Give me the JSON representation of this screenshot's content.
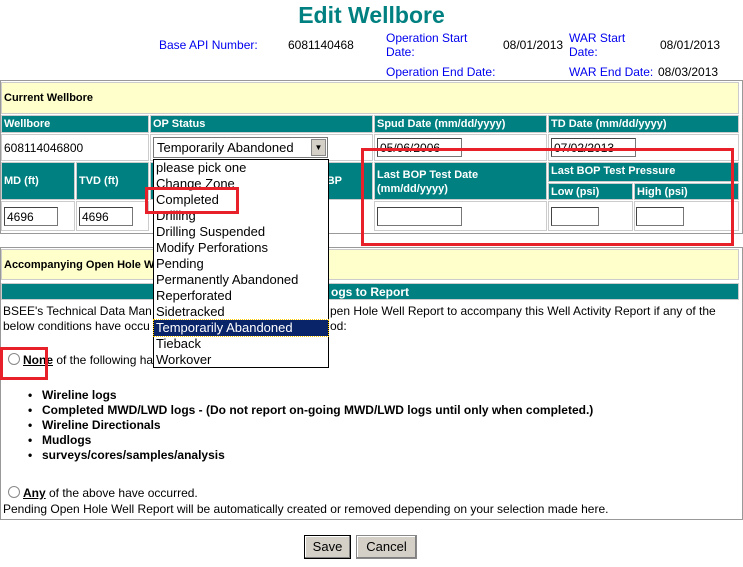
{
  "title": "Edit Wellbore",
  "info": {
    "base_api_label": "Base API Number:",
    "base_api": "6081140468",
    "op_start_label_1": "Operation Start",
    "op_start_label_2": "Date:",
    "op_start": "08/01/2013",
    "war_start_label_1": "WAR Start",
    "war_start_label_2": "Date:",
    "war_start": "08/01/2013",
    "op_end_label": "Operation End Date:",
    "war_end_label": "WAR End Date:",
    "war_end": "08/03/2013"
  },
  "current": {
    "section": "Current Wellbore",
    "headers": {
      "wellbore": "Wellbore",
      "op_status": "OP Status",
      "spud": "Spud Date (mm/dd/yyyy)",
      "td": "TD Date (mm/dd/yyyy)",
      "md": "MD (ft)",
      "tvd": "TVD (ft)",
      "bp_fragment": "BP",
      "bop_date_1": "Last BOP Test Date",
      "bop_date_2": "(mm/dd/yyyy)",
      "bop_pressure": "Last BOP Test Pressure",
      "low": "Low (psi)",
      "high": "High (psi)"
    },
    "wellbore": "608114046800",
    "op_status": "Temporarily Abandoned",
    "spud": "05/06/2006",
    "td": "07/02/2013",
    "md": "4696",
    "tvd": "4696",
    "bop_date": "",
    "low": "",
    "high": ""
  },
  "dropdown": {
    "options": [
      "please pick one",
      "Change Zone",
      "Completed",
      "Drilling",
      "Drilling Suspended",
      "Modify Perforations",
      "Pending",
      "Permanently Abandoned",
      "Reperforated",
      "Sidetracked",
      "Temporarily Abandoned",
      "Tieback",
      "Workover"
    ],
    "selected": "Temporarily Abandoned"
  },
  "openhole": {
    "section_fragment": "Accompanying Open Hole W",
    "header_fragment": "ogs to Report",
    "para_1a": "BSEE's Technical Data Man",
    "para_1b": "pen Hole Well Report to accompany this Well Activity Report if any of the",
    "para_2a": "below conditions have occu",
    "para_2b": "od:",
    "none_label": "None",
    "none_rest": " of the following ha",
    "bullets": [
      "Wireline logs",
      "Completed MWD/LWD logs - (Do not report on-going MWD/LWD logs until only when completed.)",
      "Wireline Directionals",
      "Mudlogs",
      "surveys/cores/samples/analysis"
    ],
    "any_label": "Any",
    "any_rest": " of the above have occurred.",
    "pending_note": "Pending Open Hole Well Report will be automatically created or removed depending on your selection made here."
  },
  "buttons": {
    "save": "Save",
    "cancel": "Cancel"
  },
  "colors": {
    "header": "#008080",
    "section": "#ffffcc",
    "highlight": "#e8202a"
  }
}
